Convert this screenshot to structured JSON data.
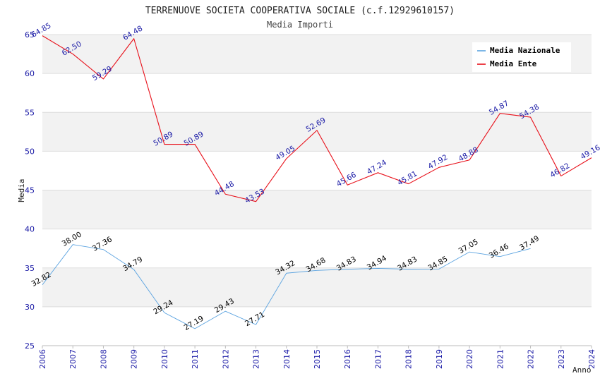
{
  "chart_data": {
    "type": "line",
    "title": "TERRENUOVE SOCIETA COOPERATIVA SOCIALE (c.f.12929610157)",
    "subtitle": "Media Importi",
    "xlabel": "Anno",
    "ylabel": "Media",
    "ylim": [
      25,
      65
    ],
    "yticks": [
      25,
      30,
      35,
      40,
      45,
      50,
      55,
      60,
      65
    ],
    "grid": "horizontal alternating bands",
    "legend_position": "top-right",
    "categories": [
      "2006",
      "2007",
      "2008",
      "2009",
      "2010",
      "2011",
      "2012",
      "2013",
      "2014",
      "2015",
      "2016",
      "2017",
      "2018",
      "2019",
      "2020",
      "2021",
      "2022",
      "2023",
      "2024"
    ],
    "series": [
      {
        "name": "Media Nazionale",
        "color": "#5ba3e0",
        "values": [
          32.82,
          38.0,
          37.36,
          34.79,
          29.24,
          27.19,
          29.43,
          27.71,
          34.32,
          34.68,
          34.83,
          34.94,
          34.83,
          34.85,
          37.05,
          36.46,
          37.49,
          null,
          null
        ],
        "labels": [
          "32.82",
          "38.00",
          "37.36",
          "34.79",
          "29.24",
          "27.19",
          "29.43",
          "27.71",
          "34.32",
          "34.68",
          "34.83",
          "34.94",
          "34.83",
          "34.85",
          "37.05",
          "36.46",
          "37.49",
          null,
          null
        ]
      },
      {
        "name": "Media Ente",
        "color": "#e8101a",
        "values": [
          64.85,
          62.5,
          59.29,
          64.48,
          50.89,
          50.89,
          44.48,
          43.53,
          49.05,
          52.69,
          45.66,
          47.24,
          45.81,
          47.92,
          48.88,
          54.87,
          54.38,
          46.82,
          49.16
        ],
        "labels": [
          "64.85",
          "62.50",
          "59.29",
          "64.48",
          "50.89",
          "50.89",
          "44.48",
          "43.53",
          "49.05",
          "52.69",
          "45.66",
          "47.24",
          "45.81",
          "47.92",
          "48.88",
          "54.87",
          "54.38",
          "46.82",
          "49.16"
        ]
      }
    ]
  }
}
